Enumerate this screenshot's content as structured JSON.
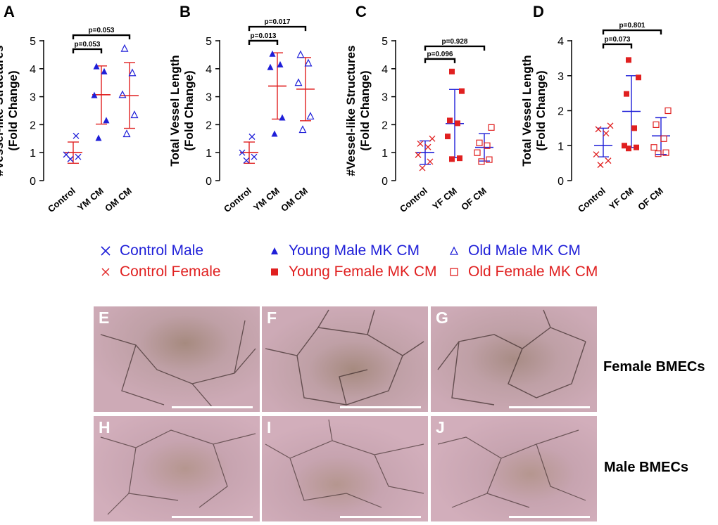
{
  "chart_data": [
    {
      "panel": "A",
      "type": "scatter",
      "ylabel_line1": "#Vessel-like Structures",
      "ylabel_line2": "(Fold Change)",
      "ylim": [
        0,
        5
      ],
      "yticks": [
        "0",
        "1",
        "2",
        "3",
        "4",
        "5"
      ],
      "categories": [
        "Control",
        "YM CM",
        "OM CM"
      ],
      "groups": [
        {
          "name": "Control",
          "color": "#1f1fd8",
          "marker": "x",
          "points": [
            0.77,
            0.85,
            0.93,
            1.6
          ],
          "mean": 1.0,
          "sd_low": 0.62,
          "sd_high": 1.38,
          "line_color": "#e02020"
        },
        {
          "name": "YM CM",
          "color": "#1f1fd8",
          "marker": "triangle-filled",
          "points": [
            1.52,
            2.15,
            3.05,
            3.9,
            4.08
          ],
          "mean": 3.07,
          "sd_low": 2.02,
          "sd_high": 4.1,
          "line_color": "#e02020"
        },
        {
          "name": "OM CM",
          "color": "#1f1fd8",
          "marker": "triangle-open",
          "points": [
            1.67,
            2.35,
            3.07,
            3.85,
            4.72
          ],
          "mean": 3.04,
          "sd_low": 1.87,
          "sd_high": 4.22,
          "line_color": "#e02020"
        }
      ],
      "comparisons": [
        {
          "from": 0,
          "to": 1,
          "y": 4.7,
          "label": "p=0.053"
        },
        {
          "from": 0,
          "to": 2,
          "y": 5.2,
          "label": "p=0.053"
        }
      ]
    },
    {
      "panel": "B",
      "type": "scatter",
      "ylabel_line1": "Total Vessel Length",
      "ylabel_line2": "(Fold Change)",
      "ylim": [
        0,
        5
      ],
      "yticks": [
        "0",
        "1",
        "2",
        "3",
        "4",
        "5"
      ],
      "categories": [
        "Control",
        "YM CM",
        "OM CM"
      ],
      "groups": [
        {
          "name": "Control",
          "color": "#1f1fd8",
          "marker": "x",
          "points": [
            0.72,
            0.85,
            1.0,
            1.57
          ],
          "mean": 1.0,
          "sd_low": 0.62,
          "sd_high": 1.38,
          "line_color": "#e02020"
        },
        {
          "name": "YM CM",
          "color": "#1f1fd8",
          "marker": "triangle-filled",
          "points": [
            1.67,
            2.25,
            4.05,
            4.15,
            4.53
          ],
          "mean": 3.38,
          "sd_low": 2.2,
          "sd_high": 4.57,
          "line_color": "#e02020"
        },
        {
          "name": "OM CM",
          "color": "#1f1fd8",
          "marker": "triangle-open",
          "points": [
            1.82,
            2.3,
            3.5,
            4.2,
            4.5
          ],
          "mean": 3.27,
          "sd_low": 2.14,
          "sd_high": 4.4,
          "line_color": "#e02020"
        }
      ],
      "comparisons": [
        {
          "from": 0,
          "to": 1,
          "y": 5.0,
          "label": "p=0.013"
        },
        {
          "from": 0,
          "to": 2,
          "y": 5.5,
          "label": "p=0.017"
        }
      ]
    },
    {
      "panel": "C",
      "type": "scatter",
      "ylabel_line1": "#Vessel-like Structures",
      "ylabel_line2": "(Fold Change)",
      "ylim": [
        0,
        5
      ],
      "yticks": [
        "0",
        "1",
        "2",
        "3",
        "4",
        "5"
      ],
      "categories": [
        "Control",
        "YF CM",
        "OF CM"
      ],
      "groups": [
        {
          "name": "Control",
          "color": "#e02020",
          "marker": "x",
          "points": [
            0.45,
            0.68,
            0.92,
            1.2,
            1.32,
            1.5
          ],
          "mean": 1.0,
          "sd_low": 0.58,
          "sd_high": 1.42,
          "line_color": "#1f1fd8"
        },
        {
          "name": "YF CM",
          "color": "#e02020",
          "marker": "square-filled",
          "points": [
            0.77,
            0.8,
            1.58,
            2.05,
            2.15,
            3.2,
            3.9
          ],
          "mean": 2.04,
          "sd_low": 0.82,
          "sd_high": 3.26,
          "line_color": "#1f1fd8"
        },
        {
          "name": "OF CM",
          "color": "#e02020",
          "marker": "square-open",
          "points": [
            0.68,
            0.75,
            1.0,
            1.25,
            1.35,
            1.9
          ],
          "mean": 1.19,
          "sd_low": 0.7,
          "sd_high": 1.68,
          "line_color": "#1f1fd8"
        }
      ],
      "comparisons": [
        {
          "from": 0,
          "to": 1,
          "y": 4.35,
          "label": "p=0.096"
        },
        {
          "from": 0,
          "to": 2,
          "y": 4.8,
          "label": "p=0.928"
        }
      ]
    },
    {
      "panel": "D",
      "type": "scatter",
      "ylabel_line1": "Total Vessel Length",
      "ylabel_line2": "(Fold Change)",
      "ylim": [
        0,
        4
      ],
      "yticks": [
        "0",
        "1",
        "2",
        "3",
        "4"
      ],
      "categories": [
        "Control",
        "YF CM",
        "OF CM"
      ],
      "groups": [
        {
          "name": "Control",
          "color": "#e02020",
          "marker": "x",
          "points": [
            0.45,
            0.57,
            0.75,
            1.35,
            1.47,
            1.57
          ],
          "mean": 1.0,
          "sd_low": 0.68,
          "sd_high": 1.5,
          "line_color": "#1f1fd8"
        },
        {
          "name": "YF CM",
          "color": "#e02020",
          "marker": "square-filled",
          "points": [
            0.92,
            0.95,
            1.0,
            1.5,
            2.48,
            2.95,
            3.45
          ],
          "mean": 1.98,
          "sd_low": 0.95,
          "sd_high": 3.0,
          "line_color": "#1f1fd8"
        },
        {
          "name": "OF CM",
          "color": "#e02020",
          "marker": "square-open",
          "points": [
            0.77,
            0.8,
            0.95,
            1.2,
            1.6,
            2.0
          ],
          "mean": 1.28,
          "sd_low": 0.75,
          "sd_high": 1.8,
          "line_color": "#1f1fd8"
        }
      ],
      "comparisons": [
        {
          "from": 0,
          "to": 1,
          "y": 3.9,
          "label": "p=0.073"
        },
        {
          "from": 0,
          "to": 2,
          "y": 4.3,
          "label": "p=0.801"
        }
      ]
    }
  ],
  "legend": [
    {
      "label": "Control Male",
      "color": "#1f1fd8",
      "marker": "x"
    },
    {
      "label": "Young Male MK CM",
      "color": "#1f1fd8",
      "marker": "triangle-filled"
    },
    {
      "label": "Old Male MK CM",
      "color": "#1f1fd8",
      "marker": "triangle-open"
    },
    {
      "label": "Control Female",
      "color": "#e02020",
      "marker": "x"
    },
    {
      "label": "Young Female MK CM",
      "color": "#e02020",
      "marker": "square-filled"
    },
    {
      "label": "Old Female MK CM",
      "color": "#e02020",
      "marker": "square-open"
    }
  ],
  "images": {
    "letters": [
      "E",
      "F",
      "G",
      "H",
      "I",
      "J"
    ],
    "row_labels": [
      "Female BMECs",
      "Male BMECs"
    ]
  }
}
